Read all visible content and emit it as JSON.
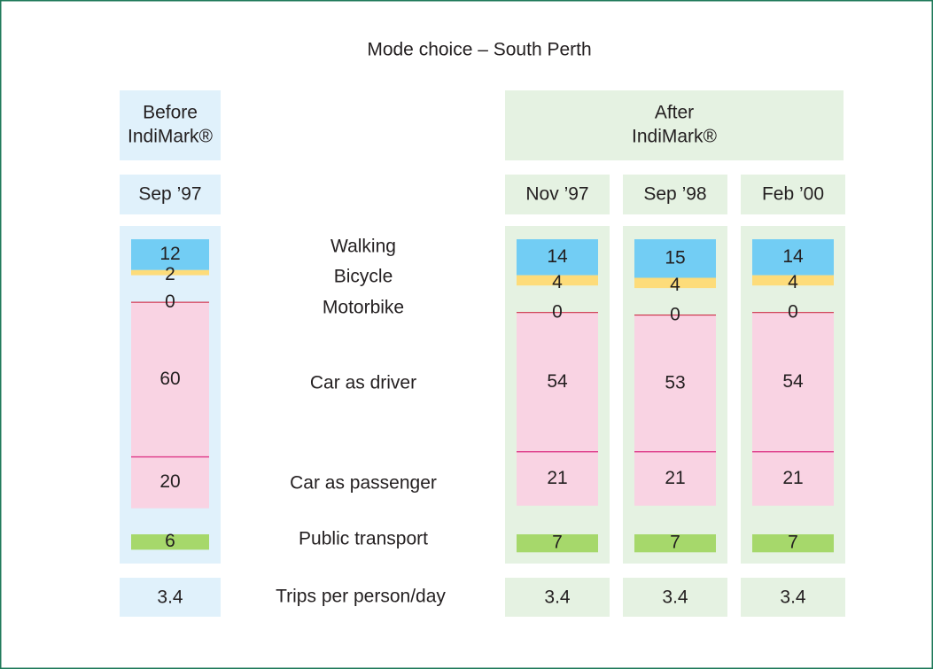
{
  "chart_data": {
    "type": "stacked_bar",
    "title": "Mode choice – South Perth",
    "groups": [
      {
        "lines": [
          "Before",
          "IndiMark®"
        ]
      },
      {
        "lines": [
          "After",
          "IndiMark®"
        ]
      }
    ],
    "categories": [
      "Sep ’97",
      "Nov ’97",
      "Sep ’98",
      "Feb ’00"
    ],
    "series": [
      {
        "name": "Walking",
        "color": "#72cdf4",
        "values": [
          12,
          14,
          15,
          14
        ]
      },
      {
        "name": "Bicycle",
        "color": "#fddc7a",
        "values": [
          2,
          4,
          4,
          4
        ]
      },
      {
        "name": "Motorbike",
        "color": "#c8102e",
        "values": [
          0,
          0,
          0,
          0
        ]
      },
      {
        "name": "Car as driver",
        "color": "#f9d3e3",
        "values": [
          60,
          54,
          53,
          54
        ]
      },
      {
        "name": "Car as passenger",
        "color": "#f9d3e3",
        "values": [
          20,
          21,
          21,
          21
        ]
      },
      {
        "name": "Public transport",
        "color": "#a6d86b",
        "values": [
          6,
          7,
          7,
          7
        ]
      }
    ],
    "trips": {
      "label": "Trips per person/day",
      "values": [
        3.4,
        3.4,
        3.4,
        3.4
      ]
    }
  }
}
